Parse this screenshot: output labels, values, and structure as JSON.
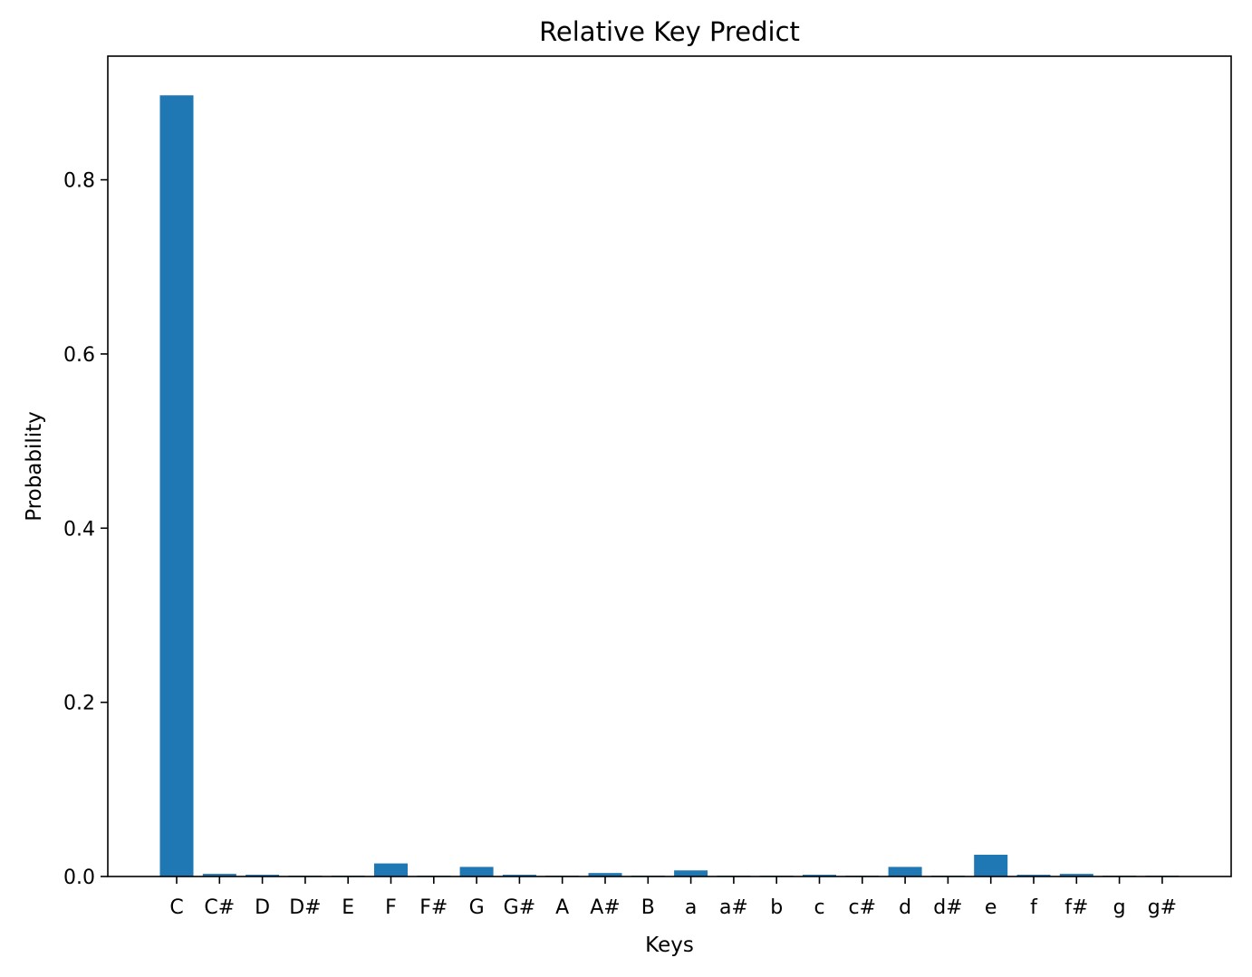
{
  "chart_data": {
    "type": "bar",
    "title": "Relative Key Predict",
    "xlabel": "Keys",
    "ylabel": "Probability",
    "categories": [
      "C",
      "C#",
      "D",
      "D#",
      "E",
      "F",
      "F#",
      "G",
      "G#",
      "A",
      "A#",
      "B",
      "a",
      "a#",
      "b",
      "c",
      "c#",
      "d",
      "d#",
      "e",
      "f",
      "f#",
      "g",
      "g#"
    ],
    "values": [
      0.897,
      0.003,
      0.002,
      0.001,
      0.001,
      0.015,
      0.001,
      0.011,
      0.002,
      0.001,
      0.004,
      0.001,
      0.007,
      0.001,
      0.001,
      0.002,
      0.001,
      0.011,
      0.001,
      0.025,
      0.002,
      0.003,
      0.001,
      0.001
    ],
    "ylim": [
      0,
      0.942
    ],
    "yticks": [
      0.0,
      0.2,
      0.4,
      0.6,
      0.8
    ],
    "ytick_labels": [
      "0.0",
      "0.2",
      "0.4",
      "0.6",
      "0.8"
    ],
    "grid": false,
    "bar_color": "#1f77b4"
  }
}
